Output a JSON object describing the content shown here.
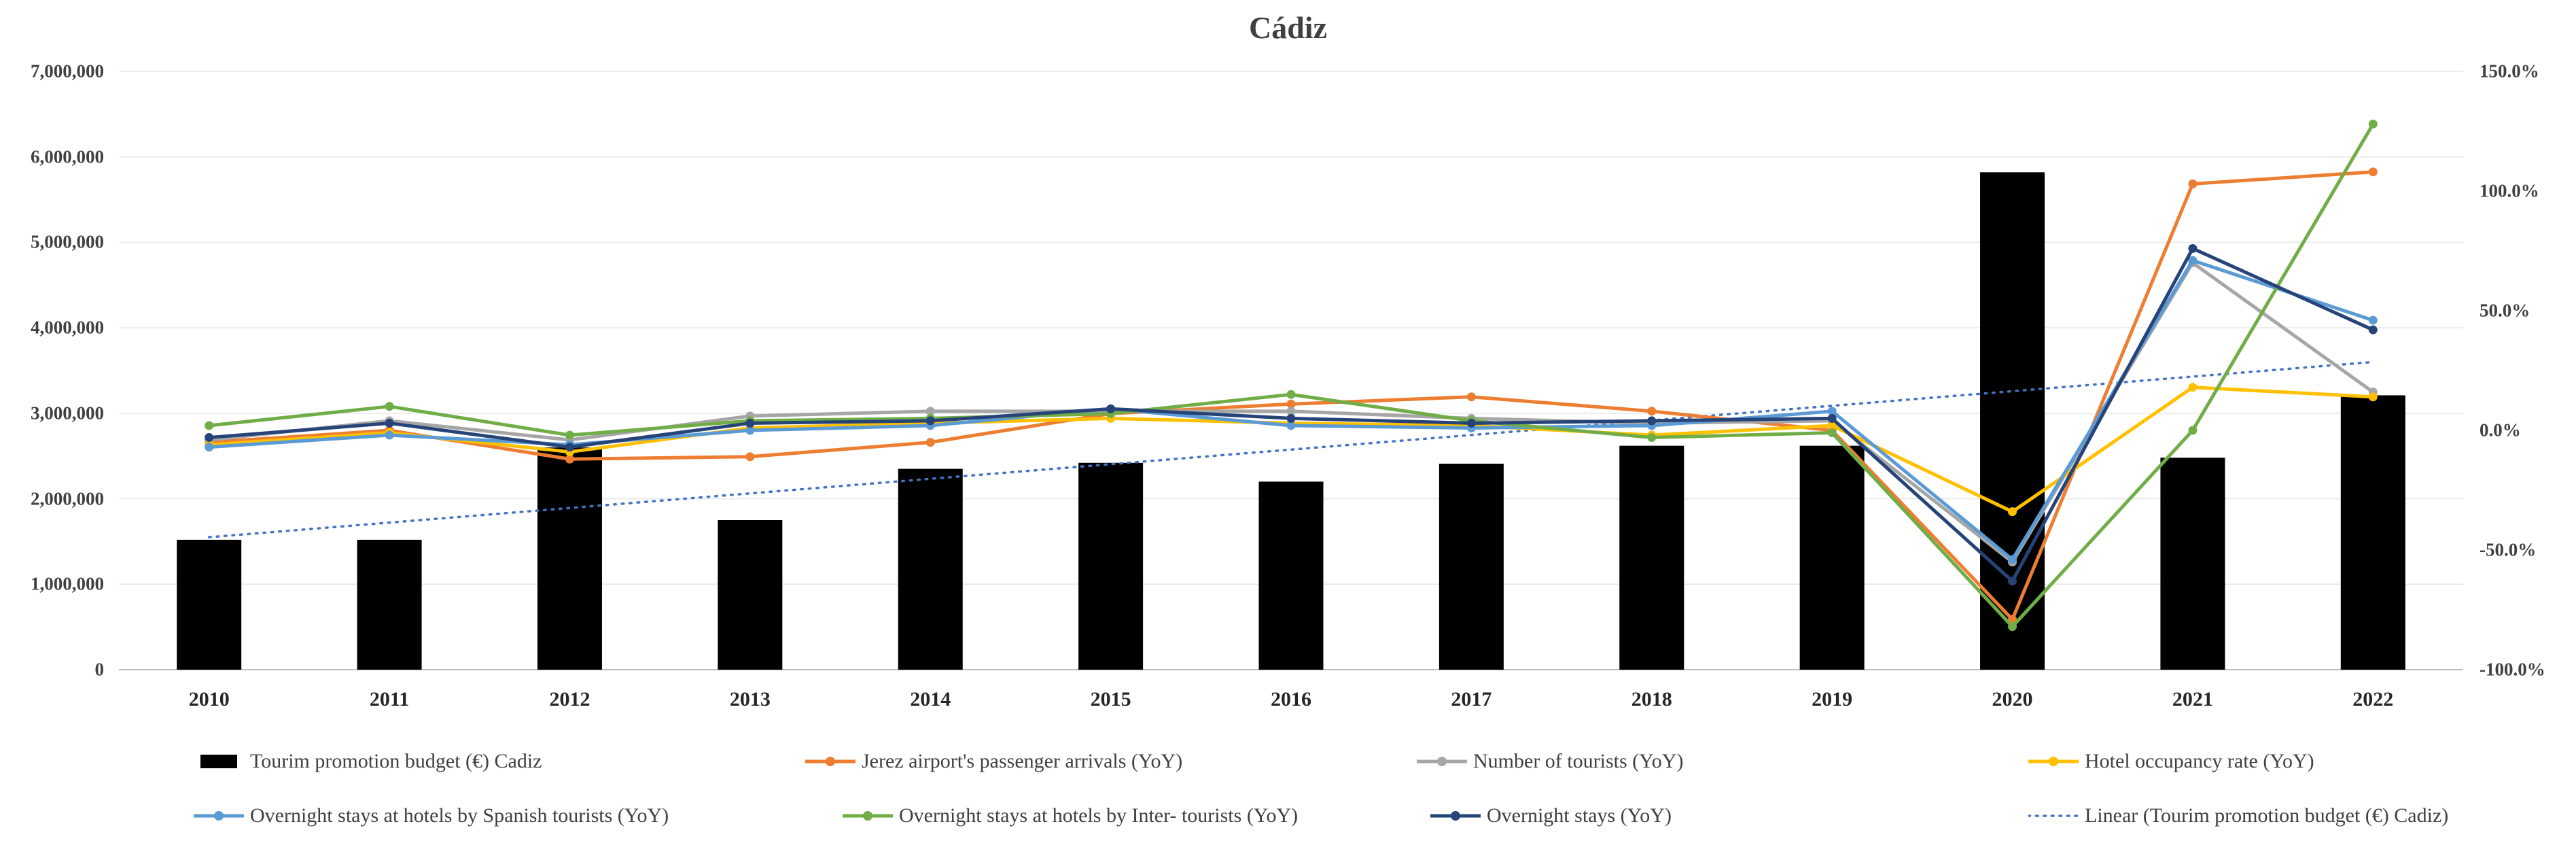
{
  "title": "Cádiz",
  "chart_data": {
    "type": "combo-bar-line",
    "grid": true,
    "legend_position": "bottom",
    "categories": [
      "2010",
      "2011",
      "2012",
      "2013",
      "2014",
      "2015",
      "2016",
      "2017",
      "2018",
      "2019",
      "2020",
      "2021",
      "2022"
    ],
    "left_axis": {
      "min": 0,
      "max": 7000000,
      "tick_values": [
        0,
        1000000,
        2000000,
        3000000,
        4000000,
        5000000,
        6000000,
        7000000
      ],
      "tick_labels": [
        "0",
        "1,000,000",
        "2,000,000",
        "3,000,000",
        "4,000,000",
        "5,000,000",
        "6,000,000",
        "7,000,000"
      ]
    },
    "right_axis": {
      "min": -100,
      "max": 150,
      "tick_values": [
        -100,
        -50,
        0,
        50,
        100,
        150
      ],
      "tick_labels": [
        "-100.0%",
        "-50.0%",
        "0.0%",
        "50.0%",
        "100.0%",
        "150.0%"
      ]
    },
    "bar_series": {
      "name": "Tourim promotion budget (€) Cadiz",
      "color": "#000000",
      "axis": "left",
      "values": [
        1520000,
        1520000,
        2600000,
        1750000,
        2350000,
        2420000,
        2200000,
        2410000,
        2620000,
        2620000,
        5820000,
        2480000,
        3210000
      ]
    },
    "line_series": [
      {
        "name": "Jerez airport's passenger arrivals (YoY)",
        "color": "#ED7D31",
        "axis": "right",
        "values_pct": [
          -5,
          0,
          -12,
          -11,
          -5,
          7,
          11,
          14,
          8,
          0,
          -79,
          103,
          108
        ]
      },
      {
        "name": "Number of tourists (YoY)",
        "color": "#A6A6A6",
        "axis": "right",
        "values_pct": [
          -4,
          4,
          -4,
          6,
          8,
          8,
          8,
          5,
          3,
          4,
          -55,
          70,
          16
        ]
      },
      {
        "name": "Hotel occupancy rate (YoY)",
        "color": "#FFC000",
        "axis": "right",
        "values_pct": [
          -6,
          -1,
          -9,
          1,
          3,
          5,
          3,
          2,
          -2,
          2,
          -34,
          18,
          14
        ]
      },
      {
        "name": "Overnight stays at hotels by Spanish tourists (YoY)",
        "color": "#5B9BD5",
        "axis": "right",
        "values_pct": [
          -7,
          -2,
          -6,
          0,
          2,
          9,
          2,
          1,
          2,
          8,
          -54,
          71,
          46
        ]
      },
      {
        "name": "Overnight stays at hotels by Inter- tourists (YoY)",
        "color": "#70AD47",
        "axis": "right",
        "values_pct": [
          2,
          10,
          -2,
          4,
          5,
          7,
          15,
          4,
          -3,
          -1,
          -82,
          0,
          128
        ]
      },
      {
        "name": "Overnight stays (YoY)",
        "color": "#264478",
        "axis": "right",
        "values_pct": [
          -3,
          3,
          -7,
          3,
          4,
          9,
          5,
          3,
          4,
          5,
          -63,
          76,
          42
        ]
      }
    ],
    "trendline": {
      "name": "Linear (Tourim promotion budget (€) Cadiz)",
      "color": "#4472C4",
      "axis": "left",
      "style": "dotted",
      "start_value": 1550000,
      "end_value": 3600000
    },
    "legend": {
      "rows": [
        [
          {
            "label": "Tourim promotion budget (€) Cadiz",
            "swatch": "bar",
            "color": "#000000"
          },
          {
            "label": "Jerez airport's passenger arrivals (YoY)",
            "swatch": "line",
            "color": "#ED7D31"
          },
          {
            "label": "Number of tourists (YoY)",
            "swatch": "line",
            "color": "#A6A6A6"
          },
          {
            "label": "Hotel occupancy rate (YoY)",
            "swatch": "line",
            "color": "#FFC000"
          }
        ],
        [
          {
            "label": "Overnight stays at hotels by Spanish tourists (YoY)",
            "swatch": "line",
            "color": "#5B9BD5"
          },
          {
            "label": "Overnight stays at hotels by Inter- tourists (YoY)",
            "swatch": "line",
            "color": "#70AD47"
          },
          {
            "label": "Overnight stays (YoY)",
            "swatch": "line",
            "color": "#264478"
          },
          {
            "label": "Linear (Tourim promotion budget (€) Cadiz)",
            "swatch": "dotted-line",
            "color": "#4472C4"
          }
        ]
      ]
    }
  }
}
